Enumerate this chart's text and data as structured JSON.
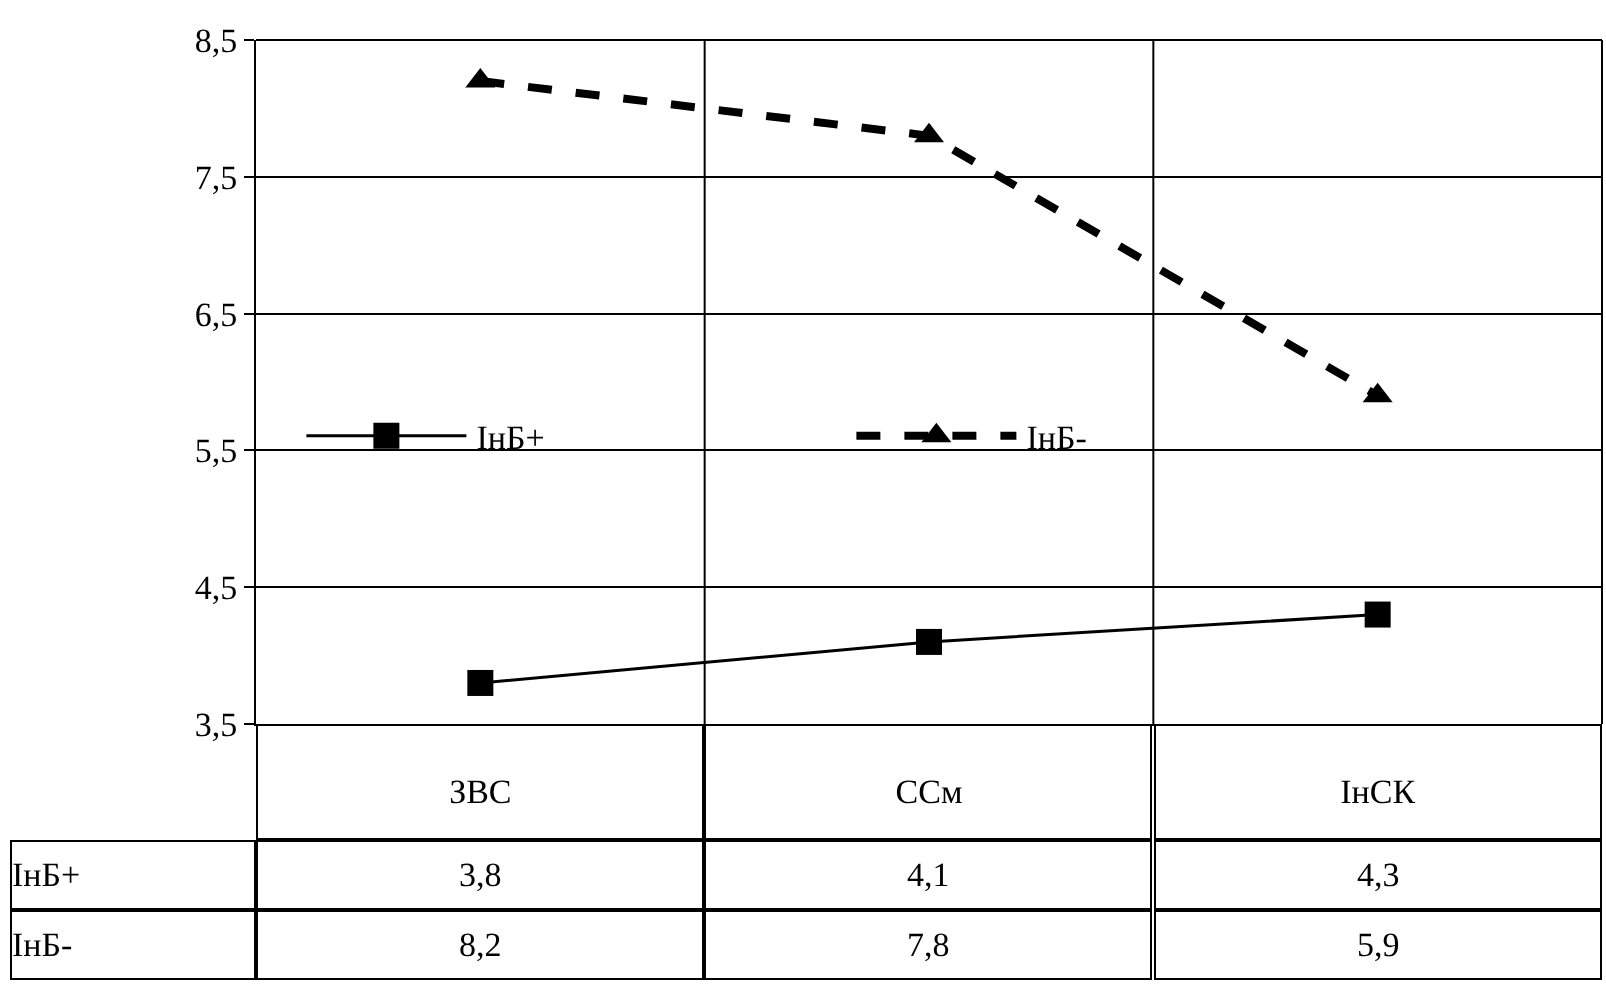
{
  "chart_data": {
    "type": "line",
    "categories": [
      "ЗВС",
      "ССм",
      "ІнСК"
    ],
    "series": [
      {
        "name": "ІнБ+",
        "color": "#000000",
        "values": [
          3.8,
          4.1,
          4.3
        ],
        "value_labels": [
          "3,8",
          "4,1",
          "4,3"
        ],
        "marker": "square",
        "line_style": "solid"
      },
      {
        "name": "ІнБ-",
        "color": "#000000",
        "values": [
          8.2,
          7.8,
          5.9
        ],
        "value_labels": [
          "8,2",
          "7,8",
          "5,9"
        ],
        "marker": "triangle",
        "line_style": "dashed"
      }
    ],
    "ylim": [
      3.5,
      8.5
    ],
    "yticks": [
      {
        "value": 3.5,
        "label": "3,5"
      },
      {
        "value": 4.5,
        "label": "4,5"
      },
      {
        "value": 5.5,
        "label": "5,5"
      },
      {
        "value": 6.5,
        "label": "6,5"
      },
      {
        "value": 7.5,
        "label": "7,5"
      },
      {
        "value": 8.5,
        "label": "8,5"
      }
    ],
    "grid": true,
    "legend": "left"
  }
}
